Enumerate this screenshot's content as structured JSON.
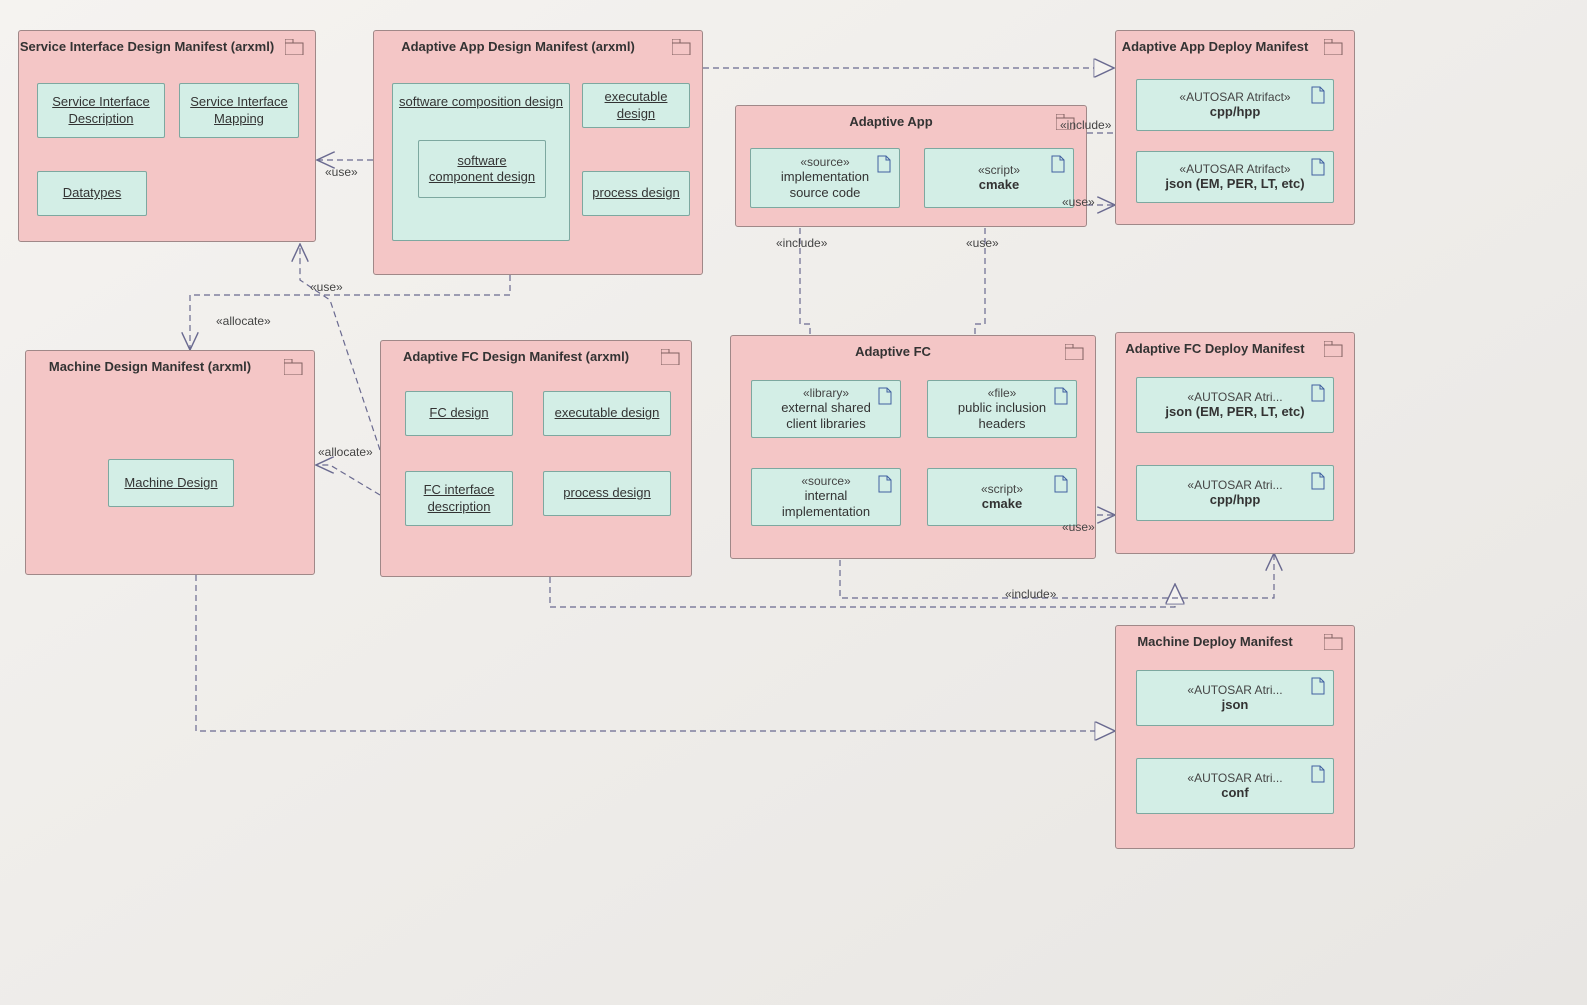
{
  "colors": {
    "pkg_bg": "#f4c6c6",
    "pkg_border": "#a08888",
    "inner_bg": "#d3eee6",
    "inner_border": "#7da8a0",
    "line": "#6a6a90",
    "bg_top": "#f5f3f0",
    "bg_bottom": "#e8e6e3"
  },
  "packages": {
    "service_iface": {
      "title": "Service Interface Design Manifest (arxml)"
    },
    "app_design": {
      "title": "Adaptive App Design Manifest (arxml)"
    },
    "adaptive_app": {
      "title": "Adaptive App"
    },
    "app_deploy": {
      "title": "Adaptive App Deploy Manifest"
    },
    "machine_design": {
      "title": "Machine Design Manifest (arxml)"
    },
    "fc_design": {
      "title": "Adaptive FC Design Manifest (arxml)"
    },
    "adaptive_fc": {
      "title": "Adaptive FC"
    },
    "fc_deploy": {
      "title": "Adaptive FC Deploy Manifest"
    },
    "machine_deploy": {
      "title": "Machine Deploy Manifest"
    }
  },
  "elements": {
    "svc_iface_desc": {
      "label": "Service Interface\nDescription"
    },
    "svc_iface_map": {
      "label": "Service Interface\nMapping"
    },
    "datatypes": {
      "label": "Datatypes"
    },
    "sw_comp_design": {
      "label": "software composition design"
    },
    "sw_component": {
      "label": "software\ncomponent design"
    },
    "exec_design_1": {
      "label": "executable design"
    },
    "process_design_1": {
      "label": "process design"
    },
    "impl_src": {
      "stereo": "«source»",
      "label": "implementation\nsource code"
    },
    "cmake_1": {
      "stereo": "«script»",
      "label": "cmake"
    },
    "cpp_1": {
      "stereo": "«AUTOSAR Atrifact»",
      "label": "cpp/hpp"
    },
    "json_1": {
      "stereo": "«AUTOSAR Atrifact»",
      "label": "json (EM, PER, LT, etc)"
    },
    "machine_design_el": {
      "label": "Machine Design"
    },
    "fc_design_el": {
      "label": "FC design"
    },
    "exec_design_2": {
      "label": "executable design"
    },
    "fc_iface_desc": {
      "label": "FC interface\ndescription"
    },
    "process_design_2": {
      "label": "process design"
    },
    "ext_lib": {
      "stereo": "«library»",
      "label": "external shared\nclient libraries"
    },
    "pub_hdr": {
      "stereo": "«file»",
      "label": "public inclusion\nheaders"
    },
    "int_impl": {
      "stereo": "«source»",
      "label": "internal\nimplementation"
    },
    "cmake_2": {
      "stereo": "«script»",
      "label": "cmake"
    },
    "json_2": {
      "stereo": "«AUTOSAR Atri...",
      "label": "json (EM, PER, LT, etc)"
    },
    "cpp_2": {
      "stereo": "«AUTOSAR Atri...",
      "label": "cpp/hpp"
    },
    "json_3": {
      "stereo": "«AUTOSAR Atri...",
      "label": "json"
    },
    "conf": {
      "stereo": "«AUTOSAR Atri...",
      "label": "conf"
    }
  },
  "edge_labels": {
    "use_1": "«use»",
    "use_2": "«use»",
    "use_3": "«use»",
    "use_4": "«use»",
    "allocate_1": "«allocate»",
    "allocate_2": "«allocate»",
    "include_1": "«include»",
    "include_2": "«include»",
    "include_3": "«include»"
  }
}
